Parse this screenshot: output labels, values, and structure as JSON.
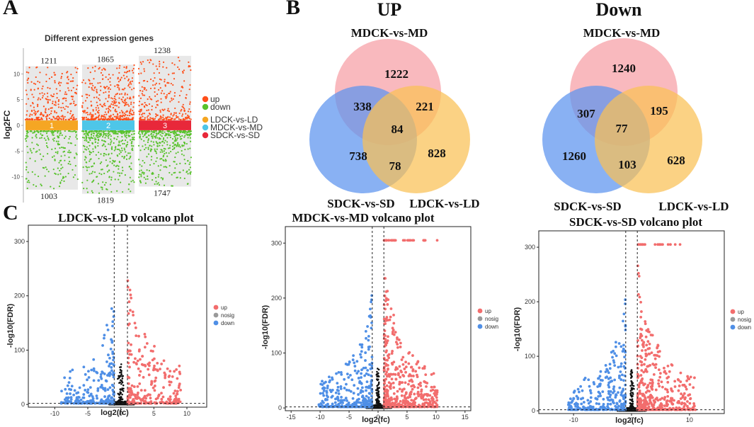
{
  "panels": {
    "a": "A",
    "b": "B",
    "c": "C"
  },
  "chart_data": [
    {
      "id": "deg-scatter",
      "type": "scatter",
      "title": "Different expression genes",
      "ylabel": "log2FC",
      "ylim": [
        -15,
        15
      ],
      "yticks": [
        -10,
        -5,
        0,
        5,
        10
      ],
      "groups": [
        {
          "index": "1",
          "name": "LDCK-vs-LD",
          "up": 1211,
          "down": 1003,
          "color": "#f5a623"
        },
        {
          "index": "2",
          "name": "MDCK-vs-MD",
          "up": 1865,
          "down": 1819,
          "color": "#4ec6e8"
        },
        {
          "index": "3",
          "name": "SDCK-vs-SD",
          "up": 1238,
          "down": 1747,
          "color": "#e8283a"
        }
      ],
      "legend": [
        {
          "label": "up",
          "color": "#ff4f1a"
        },
        {
          "label": "down",
          "color": "#58c22c"
        },
        {
          "label": "LDCK-vs-LD",
          "color": "#f5a623"
        },
        {
          "label": "MDCK-vs-MD",
          "color": "#4ec6e8"
        },
        {
          "label": "SDCK-vs-SD",
          "color": "#e8283a"
        }
      ]
    },
    {
      "id": "venn-up",
      "type": "venn",
      "title": "UP",
      "sets": [
        "MDCK-vs-MD",
        "SDCK-vs-SD",
        "LDCK-vs-LD"
      ],
      "regions": {
        "m_only": 1222,
        "s_only": 738,
        "l_only": 828,
        "m_s": 338,
        "m_l": 221,
        "s_l": 78,
        "m_s_l": 84
      }
    },
    {
      "id": "venn-down",
      "type": "venn",
      "title": "Down",
      "sets": [
        "MDCK-vs-MD",
        "SDCK-vs-SD",
        "LDCK-vs-LD"
      ],
      "regions": {
        "m_only": 1240,
        "s_only": 1260,
        "l_only": 628,
        "m_s": 307,
        "m_l": 195,
        "s_l": 103,
        "m_s_l": 77
      }
    },
    {
      "id": "volcano-ld",
      "type": "scatter",
      "title": "LDCK-vs-LD volcano plot",
      "xlabel": "log2(fc)",
      "ylabel": "-log10(FDR)",
      "xlim": [
        -14,
        13
      ],
      "ylim": [
        -5,
        330
      ],
      "xticks": [
        -10,
        -5,
        0,
        5,
        10
      ],
      "yticks": [
        0,
        100,
        200,
        300
      ],
      "fc_threshold": [
        -1,
        1
      ],
      "fdr_threshold": 2,
      "legend": [
        "up",
        "nosig",
        "down"
      ]
    },
    {
      "id": "volcano-md",
      "type": "scatter",
      "title": "MDCK-vs-MD volcano plot",
      "xlabel": "log2(fc)",
      "ylabel": "-log10(FDR)",
      "xlim": [
        -16,
        16
      ],
      "ylim": [
        -5,
        330
      ],
      "xticks": [
        -15,
        -10,
        -5,
        0,
        5,
        10,
        15
      ],
      "yticks": [
        0,
        100,
        200,
        300
      ],
      "fc_threshold": [
        -1,
        1
      ],
      "fdr_threshold": 2,
      "legend": [
        "up",
        "nosig",
        "down"
      ]
    },
    {
      "id": "volcano-sd",
      "type": "scatter",
      "title": "SDCK-vs-SD volcano plot",
      "xlabel": "log2(fc)",
      "ylabel": "-log10(FDR)",
      "xlim": [
        -16,
        16
      ],
      "ylim": [
        -5,
        330
      ],
      "xticks": [
        -10,
        0,
        10
      ],
      "yticks": [
        0,
        100,
        200,
        300
      ],
      "fc_threshold": [
        -1,
        1
      ],
      "fdr_threshold": 2,
      "legend": [
        "up",
        "nosig",
        "down"
      ]
    }
  ],
  "volcano_colors": {
    "up": "#f26d6d",
    "nosig": "#999999",
    "down": "#4f8fe6",
    "core": "#111111"
  }
}
